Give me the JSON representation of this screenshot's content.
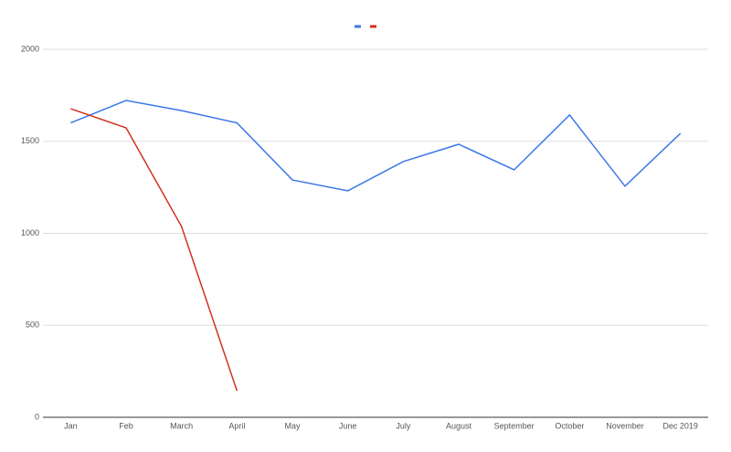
{
  "chart_data": {
    "type": "line",
    "categories": [
      "Jan",
      "Feb",
      "March",
      "April",
      "May",
      "June",
      "July",
      "August",
      "September",
      "October",
      "November",
      "Dec 2019"
    ],
    "series": [
      {
        "color": "#3b78e7",
        "values": [
          1600,
          1722,
          1667,
          1600,
          1290,
          1231,
          1390,
          1484,
          1345,
          1643,
          1256,
          1543
        ]
      },
      {
        "color": "#d0321f",
        "values": [
          1677,
          1573,
          1037,
          144,
          null,
          null,
          null,
          null,
          null,
          null,
          null,
          null
        ]
      }
    ],
    "ylim": [
      0,
      2000
    ],
    "yticks": [
      0,
      500,
      1000,
      1500,
      2000
    ],
    "grid": true,
    "legend": "top"
  }
}
